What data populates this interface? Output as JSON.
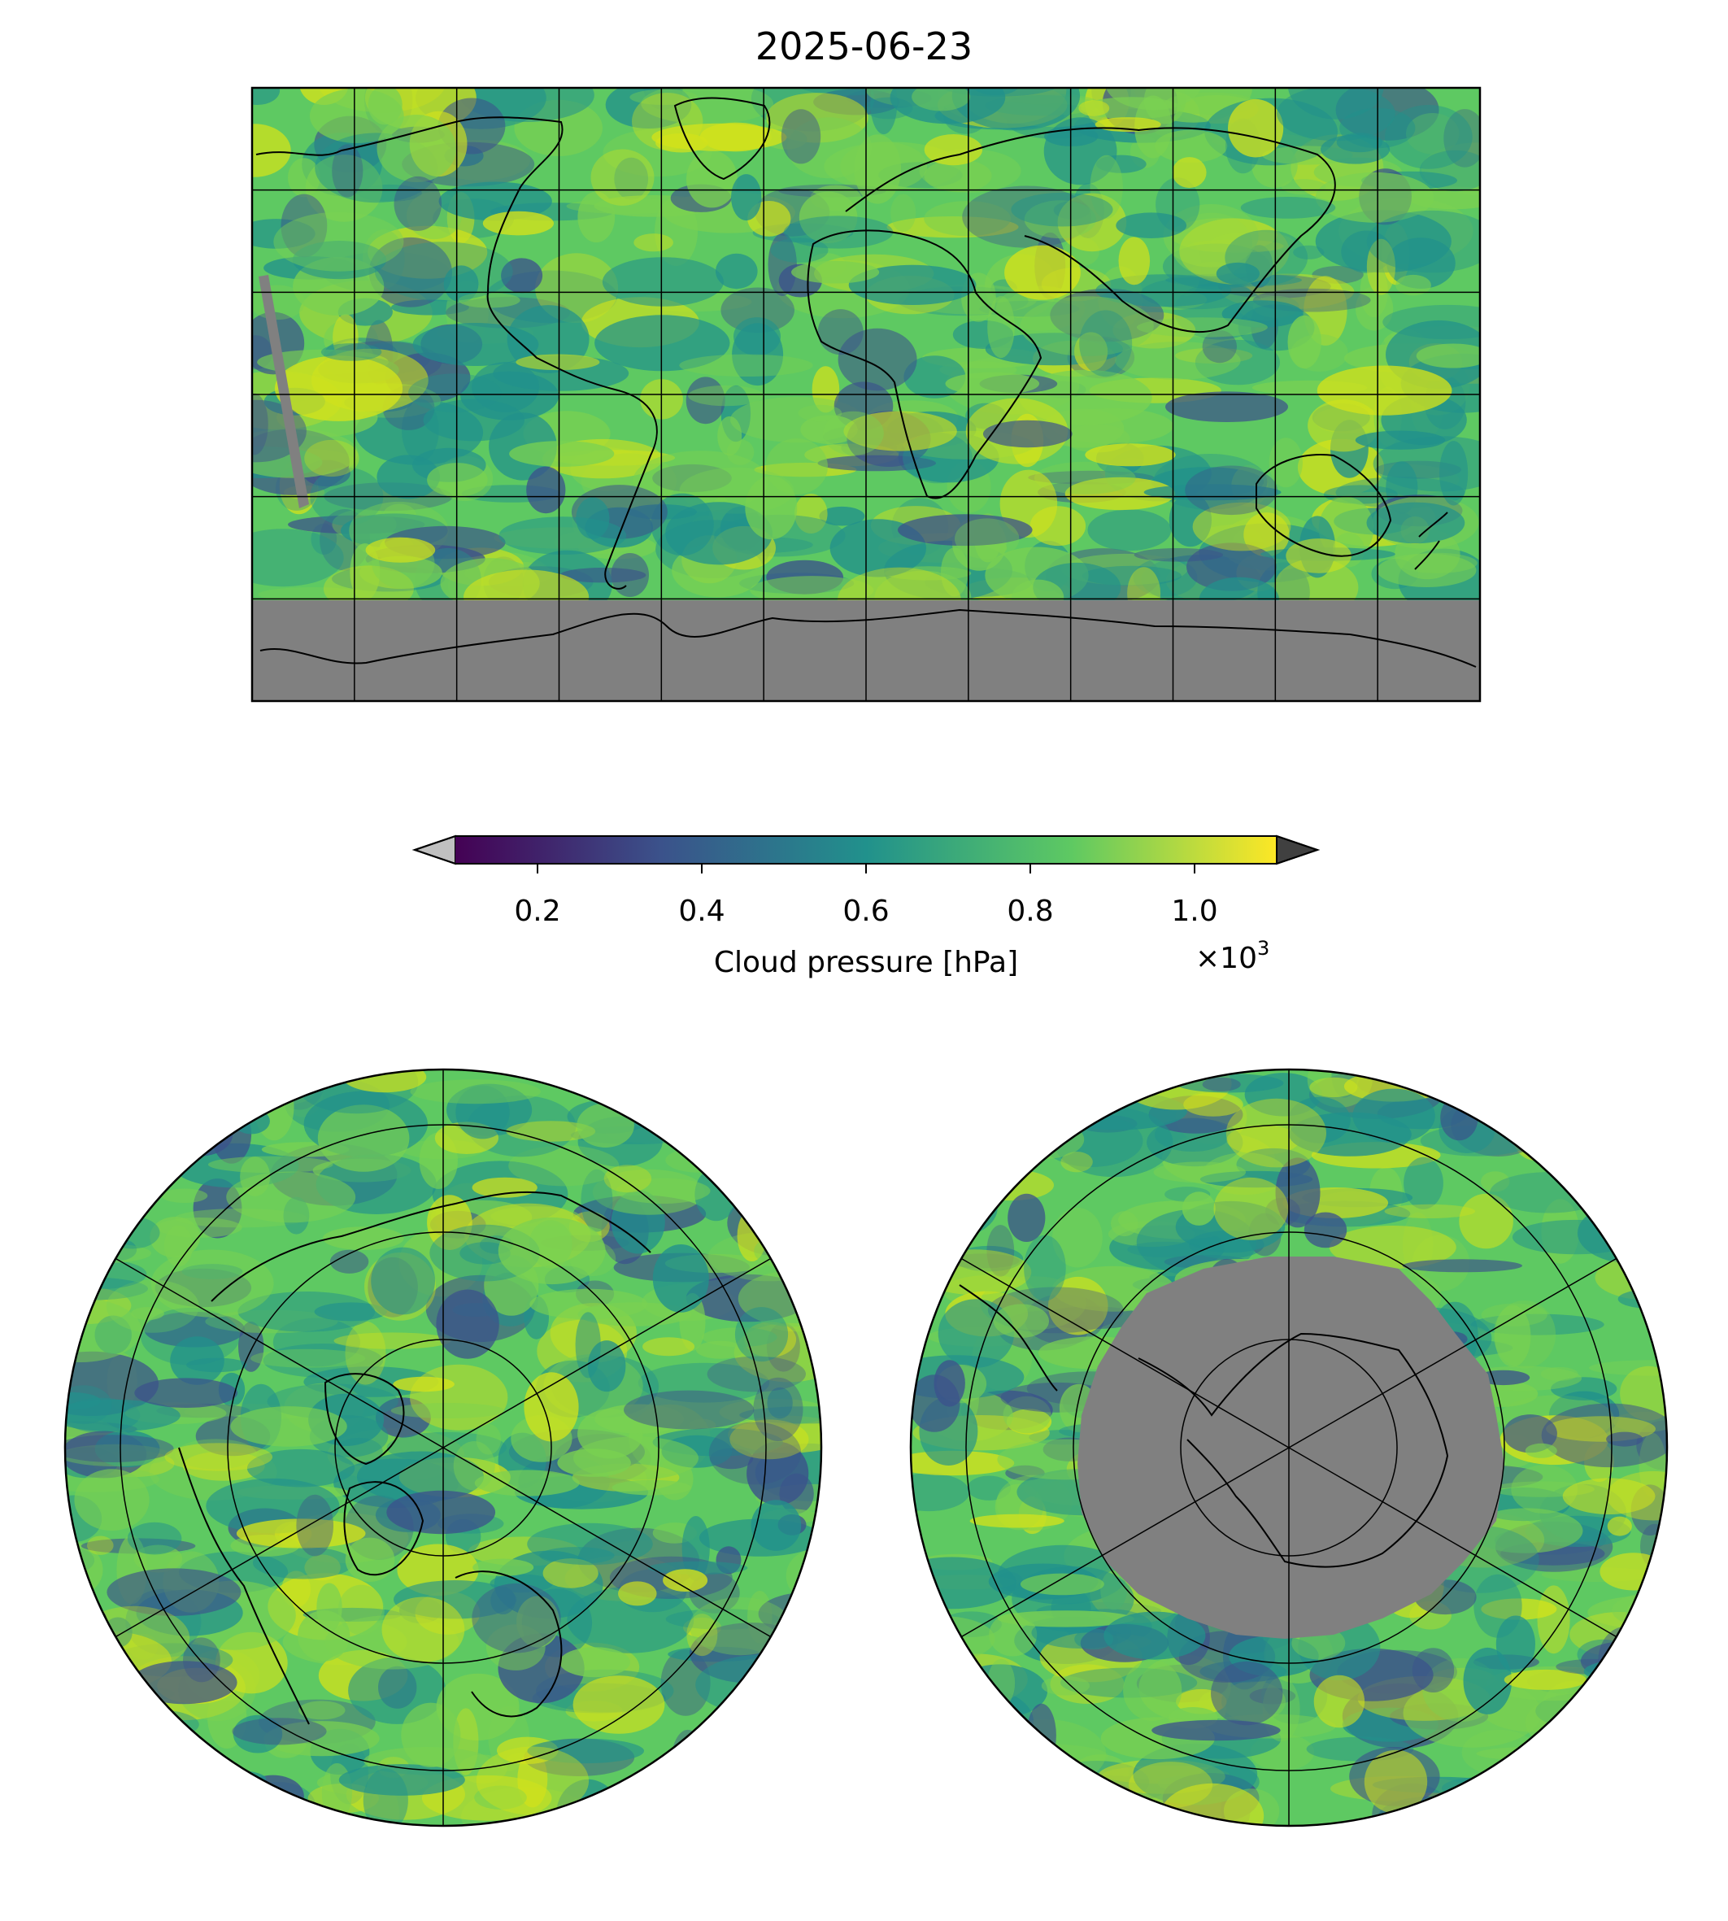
{
  "title": "2025-06-23",
  "colorbar": {
    "label": "Cloud pressure [hPa]",
    "scale_label": "×10",
    "scale_exponent": "3",
    "ticks": [
      "0.2",
      "0.4",
      "0.6",
      "0.8",
      "1.0"
    ],
    "tick_values": [
      0.2,
      0.4,
      0.6,
      0.8,
      1.0
    ],
    "range": [
      0.1,
      1.1
    ],
    "extend": "both",
    "under_color": "#c0c0c0",
    "over_color": "#404040",
    "colormap": "viridis",
    "colormap_stops": [
      "#440154",
      "#3b528b",
      "#21918c",
      "#5ec962",
      "#fde725"
    ]
  },
  "colors": {
    "no_data": "#808080",
    "coastline": "#000000",
    "high_cloud": "#3b528b",
    "mid_cloud": "#21918c",
    "low_cloud": "#7ad151",
    "surface": "#d2e21b"
  },
  "maps": [
    {
      "name": "global",
      "projection": "plate-carree",
      "gridlines": true
    },
    {
      "name": "north-polar",
      "projection": "north-polar-stereographic",
      "gridlines": true
    },
    {
      "name": "south-polar",
      "projection": "south-polar-stereographic",
      "gridlines": true
    }
  ]
}
